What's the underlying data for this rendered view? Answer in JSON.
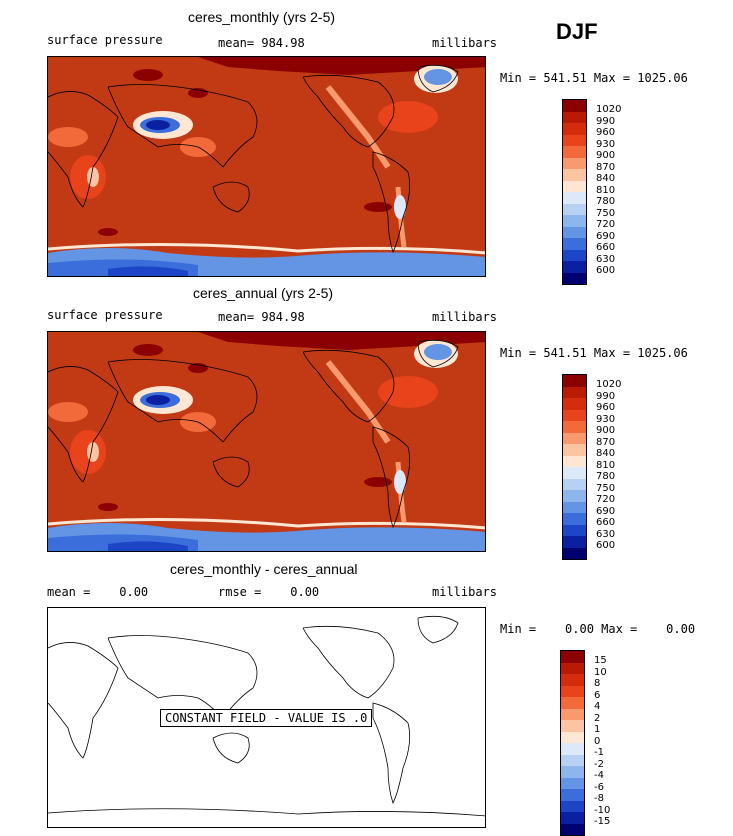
{
  "season": "DJF",
  "panel1": {
    "title": "ceres_monthly (yrs 2-5)",
    "field": "surface pressure",
    "stat": "mean= 984.98",
    "units": "millibars",
    "minmax": "Min = 541.51 Max = 1025.06"
  },
  "panel2": {
    "title": "ceres_annual (yrs 2-5)",
    "field": "surface pressure",
    "stat": "mean= 984.98",
    "units": "millibars",
    "minmax": "Min = 541.51 Max = 1025.06"
  },
  "panel3": {
    "title": "ceres_monthly - ceres_annual",
    "mean": "mean =    0.00",
    "rmse": "rmse =    0.00",
    "units": "millibars",
    "minmax": "Min =    0.00 Max =    0.00",
    "constant_note": "CONSTANT FIELD - VALUE IS .0"
  },
  "colorbar_abs": {
    "labels": [
      "1020",
      "990",
      "960",
      "930",
      "900",
      "870",
      "840",
      "810",
      "780",
      "750",
      "720",
      "690",
      "660",
      "630",
      "600"
    ],
    "colors": [
      "#8b0000",
      "#b81a04",
      "#d42c0c",
      "#e8431a",
      "#f26a3a",
      "#f89a6e",
      "#fcc4a2",
      "#fde6d2",
      "#dde9f8",
      "#b6d1f2",
      "#8db6ec",
      "#6395e4",
      "#3b6edb",
      "#1d46c7",
      "#0a20a0",
      "#000070"
    ]
  },
  "colorbar_diff": {
    "labels": [
      "15",
      "10",
      "8",
      "6",
      "4",
      "2",
      "1",
      "0",
      "-1",
      "-2",
      "-4",
      "-6",
      "-8",
      "-10",
      "-15"
    ],
    "colors": [
      "#8b0000",
      "#b81a04",
      "#d42c0c",
      "#e8431a",
      "#f26a3a",
      "#f89a6e",
      "#fcc4a2",
      "#fde6d2",
      "#dde9f8",
      "#b6d1f2",
      "#8db6ec",
      "#6395e4",
      "#3b6edb",
      "#1d46c7",
      "#0a20a0",
      "#000070"
    ]
  }
}
